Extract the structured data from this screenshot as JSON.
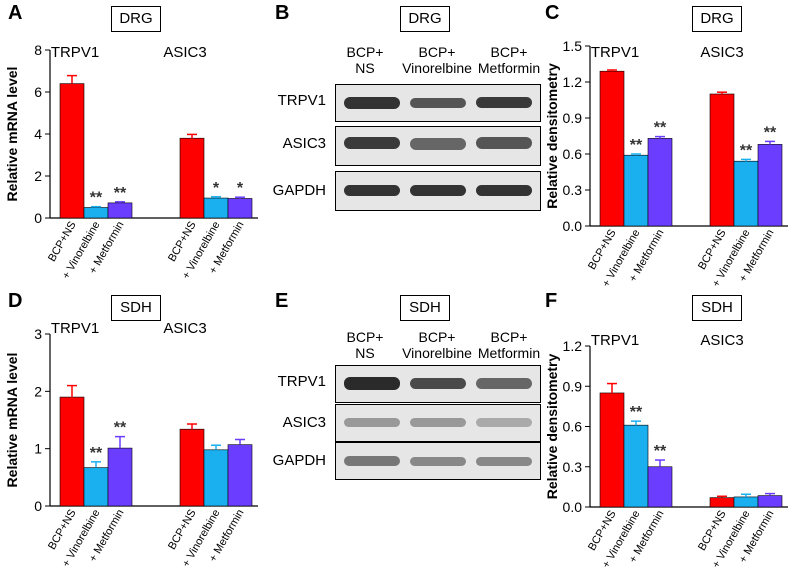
{
  "panels": {
    "A": {
      "letter": "A",
      "tag": "DRG"
    },
    "B": {
      "letter": "B",
      "tag": "DRG"
    },
    "C": {
      "letter": "C",
      "tag": "DRG"
    },
    "D": {
      "letter": "D",
      "tag": "SDH"
    },
    "E": {
      "letter": "E",
      "tag": "SDH"
    },
    "F": {
      "letter": "F",
      "tag": "SDH"
    }
  },
  "blot_B": {
    "columns": [
      "BCP+\nNS",
      "BCP+\nVinorelbine",
      "BCP+\nMetformin"
    ],
    "rows": [
      "TRPV1",
      "ASIC3",
      "GAPDH"
    ]
  },
  "blot_E": {
    "columns": [
      "BCP+\nNS",
      "BCP+\nVinorelbine",
      "BCP+\nMetformin"
    ],
    "rows": [
      "TRPV1",
      "ASIC3",
      "GAPDH"
    ]
  },
  "chart_data": [
    {
      "id": "A",
      "type": "bar",
      "ylabel": "Relative mRNA level",
      "ylim": [
        0,
        8
      ],
      "yticks": [
        0,
        2,
        4,
        6,
        8
      ],
      "tickdecimals": 0,
      "groups": [
        "TRPV1",
        "ASIC3"
      ],
      "categories": [
        "BCP+NS",
        "+ Vinorelbine",
        "+ Metformin"
      ],
      "colors": [
        "#ff0000",
        "#1ab0f0",
        "#6a3dff"
      ],
      "values": [
        [
          6.4,
          0.5,
          0.72
        ],
        [
          3.8,
          0.95,
          0.93
        ]
      ],
      "errors": [
        [
          0.38,
          0.04,
          0.05
        ],
        [
          0.18,
          0.06,
          0.06
        ]
      ],
      "sig": [
        [
          "",
          "**",
          "**"
        ],
        [
          "",
          "*",
          "*"
        ]
      ]
    },
    {
      "id": "C",
      "type": "bar",
      "ylabel": "Relative densitometry",
      "ylim": [
        0,
        1.5
      ],
      "yticks": [
        0,
        0.3,
        0.6,
        0.9,
        1.2,
        1.5
      ],
      "tickdecimals": 1,
      "groups": [
        "TRPV1",
        "ASIC3"
      ],
      "categories": [
        "BCP+NS",
        "+ Vinorelbine",
        "+ Metformin"
      ],
      "colors": [
        "#ff0000",
        "#1ab0f0",
        "#6a3dff"
      ],
      "values": [
        [
          1.29,
          0.59,
          0.73
        ],
        [
          1.1,
          0.54,
          0.68
        ]
      ],
      "errors": [
        [
          0.01,
          0.01,
          0.015
        ],
        [
          0.015,
          0.015,
          0.025
        ]
      ],
      "sig": [
        [
          "",
          "**",
          "**"
        ],
        [
          "",
          "**",
          "**"
        ]
      ]
    },
    {
      "id": "D",
      "type": "bar",
      "ylabel": "Relative mRNA level",
      "ylim": [
        0,
        3
      ],
      "yticks": [
        0,
        1,
        2,
        3
      ],
      "tickdecimals": 0,
      "groups": [
        "TRPV1",
        "ASIC3"
      ],
      "categories": [
        "BCP+NS",
        "+ Vinorelbine",
        "+ Metformin"
      ],
      "colors": [
        "#ff0000",
        "#1ab0f0",
        "#6a3dff"
      ],
      "values": [
        [
          1.9,
          0.67,
          1.01
        ],
        [
          1.34,
          0.98,
          1.07
        ]
      ],
      "errors": [
        [
          0.2,
          0.1,
          0.2
        ],
        [
          0.09,
          0.08,
          0.09
        ]
      ],
      "sig": [
        [
          "",
          "**",
          "**"
        ],
        [
          "",
          "",
          ""
        ]
      ]
    },
    {
      "id": "F",
      "type": "bar",
      "ylabel": "Relative densitometry",
      "ylim": [
        0,
        1.2
      ],
      "yticks": [
        0,
        0.3,
        0.6,
        0.9,
        1.2
      ],
      "tickdecimals": 1,
      "groups": [
        "TRPV1",
        "ASIC3"
      ],
      "categories": [
        "BCP+NS",
        "+ Vinorelbine",
        "+ Metformin"
      ],
      "colors": [
        "#ff0000",
        "#1ab0f0",
        "#6a3dff"
      ],
      "values": [
        [
          0.85,
          0.61,
          0.3
        ],
        [
          0.07,
          0.075,
          0.085
        ]
      ],
      "errors": [
        [
          0.07,
          0.03,
          0.05
        ],
        [
          0.01,
          0.02,
          0.015
        ]
      ],
      "sig": [
        [
          "",
          "**",
          "**"
        ],
        [
          "",
          "",
          ""
        ]
      ]
    }
  ]
}
